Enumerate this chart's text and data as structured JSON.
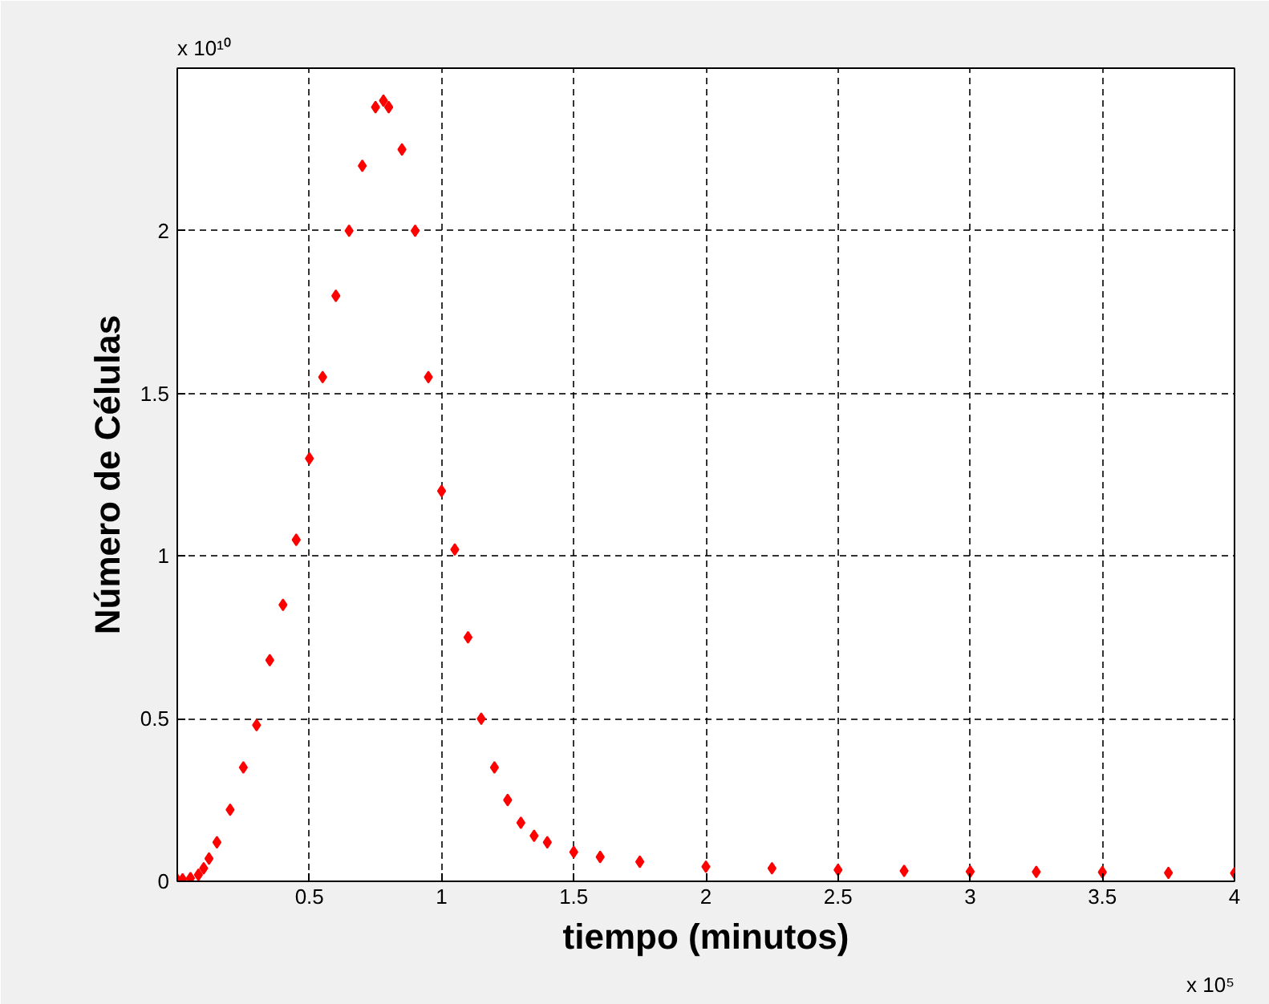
{
  "chart_data": {
    "type": "scatter",
    "xlabel": "tiempo (minutos)",
    "ylabel": "Número de Células",
    "x": [
      0,
      0.02,
      0.05,
      0.08,
      0.1,
      0.12,
      0.15,
      0.2,
      0.25,
      0.3,
      0.35,
      0.4,
      0.45,
      0.5,
      0.55,
      0.6,
      0.65,
      0.7,
      0.75,
      0.78,
      0.8,
      0.85,
      0.9,
      0.95,
      1.0,
      1.05,
      1.1,
      1.15,
      1.2,
      1.25,
      1.3,
      1.35,
      1.4,
      1.5,
      1.6,
      1.75,
      2.0,
      2.25,
      2.5,
      2.75,
      3.0,
      3.25,
      3.5,
      3.75,
      4.0
    ],
    "series": [
      {
        "color": "#ff0000",
        "values": [
          0.005,
          0.006,
          0.01,
          0.02,
          0.04,
          0.07,
          0.12,
          0.22,
          0.35,
          0.48,
          0.68,
          0.85,
          1.05,
          1.3,
          1.55,
          1.8,
          2.0,
          2.2,
          2.38,
          2.4,
          2.38,
          2.25,
          2.0,
          1.55,
          1.2,
          1.02,
          0.75,
          0.5,
          0.35,
          0.25,
          0.18,
          0.14,
          0.12,
          0.09,
          0.075,
          0.06,
          0.045,
          0.04,
          0.035,
          0.032,
          0.03,
          0.029,
          0.028,
          0.026,
          0.025
        ]
      }
    ],
    "xlim": [
      0,
      4
    ],
    "ylim": [
      0,
      2.5
    ],
    "xticks": [
      0.5,
      1,
      1.5,
      2,
      2.5,
      3,
      3.5,
      4
    ],
    "yticks": [
      0,
      0.5,
      1,
      1.5,
      2
    ],
    "grid": true,
    "marker": "diamond",
    "annotations": [
      "x 10¹⁰",
      "x 10⁵"
    ]
  }
}
